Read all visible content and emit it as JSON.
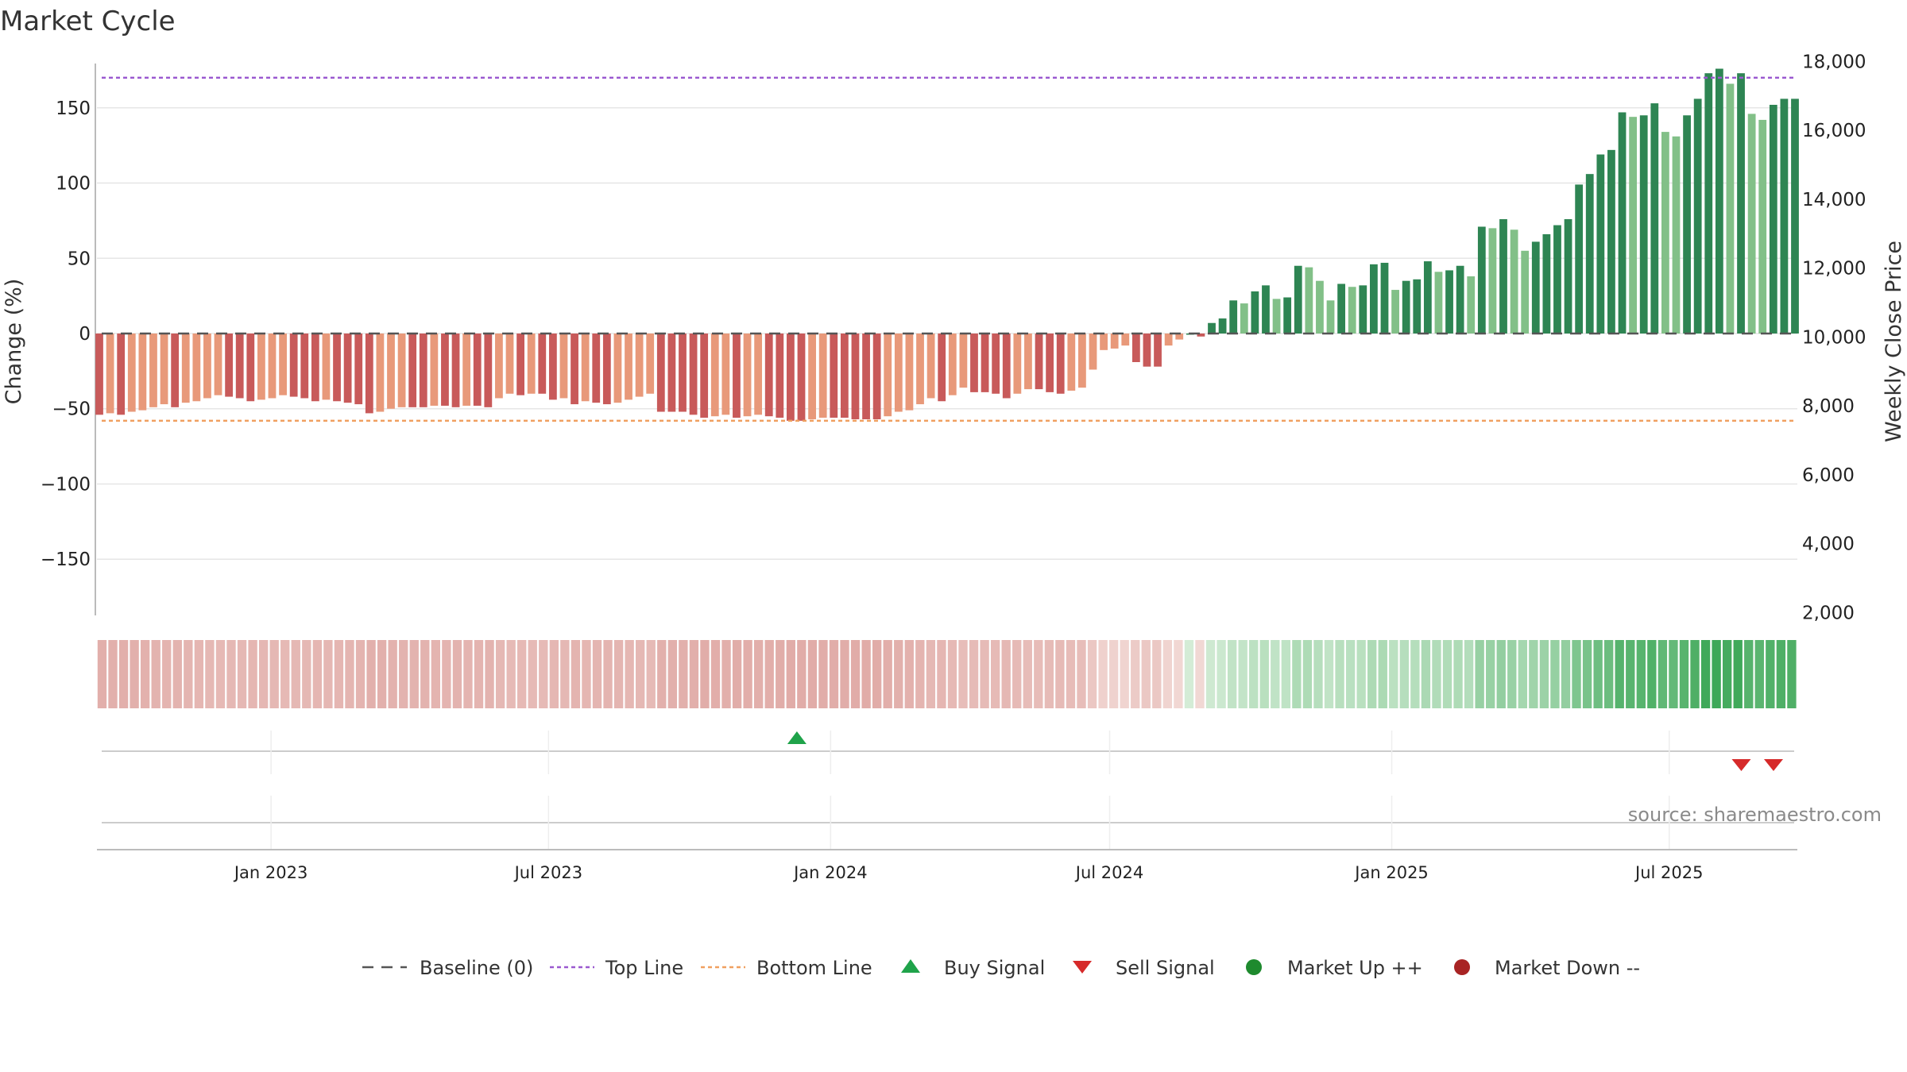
{
  "chart_data": {
    "type": "bar",
    "title": "Market Cycle",
    "ylabel_left": "Change (%)",
    "ylabel_right": "Weekly Close Price",
    "ylim_left": [
      -190,
      190
    ],
    "yticks_left": [
      150,
      100,
      50,
      0,
      -50,
      -100,
      -150
    ],
    "ytick_labels_left": [
      "150",
      "100",
      "50",
      "0",
      "−50",
      "−100",
      "−150"
    ],
    "ylim_right": [
      1800,
      18400
    ],
    "yticks_right": [
      18000,
      16000,
      14000,
      12000,
      10000,
      8000,
      6000,
      4000,
      2000
    ],
    "ytick_labels_right": [
      "18,000",
      "16,000",
      "14,000",
      "12,000",
      "10,000",
      "8,000",
      "6,000",
      "4,000",
      "2,000"
    ],
    "x_start": "2022-09-11",
    "x_end": "2025-09-21",
    "bar_interval_days": 7,
    "xticks": [
      "2023-01-01",
      "2023-07-01",
      "2024-01-01",
      "2024-07-01",
      "2025-01-01",
      "2025-07-01"
    ],
    "xtick_labels": [
      "Jan 2023",
      "Jul 2023",
      "Jan 2024",
      "Jul 2024",
      "Jan 2025",
      "Jul 2025"
    ],
    "top_line": 170,
    "bottom_line": -58,
    "baseline": 0,
    "values": [
      -54,
      -53,
      -54,
      -52,
      -51,
      -49,
      -47,
      -49,
      -46,
      -45,
      -43,
      -41,
      -42,
      -43,
      -45,
      -44,
      -43,
      -41,
      -42,
      -43,
      -45,
      -44,
      -45,
      -46,
      -47,
      -53,
      -52,
      -50,
      -49,
      -49,
      -49,
      -48,
      -48,
      -49,
      -48,
      -48,
      -49,
      -43,
      -40,
      -41,
      -40,
      -40,
      -44,
      -43,
      -47,
      -45,
      -46,
      -47,
      -46,
      -44,
      -42,
      -40,
      -52,
      -52,
      -52,
      -54,
      -56,
      -55,
      -54,
      -56,
      -55,
      -54,
      -55,
      -56,
      -58,
      -58,
      -57,
      -56,
      -56,
      -56,
      -57,
      -57,
      -57,
      -55,
      -52,
      -51,
      -47,
      -43,
      -45,
      -41,
      -36,
      -39,
      -39,
      -40,
      -43,
      -40,
      -37,
      -37,
      -39,
      -40,
      -38,
      -36,
      -24,
      -11,
      -10,
      -8,
      -19,
      -22,
      -22,
      -8,
      -4,
      0,
      -2,
      7,
      10,
      22,
      20,
      28,
      32,
      23,
      24,
      45,
      44,
      35,
      22,
      33,
      31,
      32,
      46,
      47,
      29,
      35,
      36,
      48,
      41,
      42,
      45,
      38,
      71,
      70,
      76,
      69,
      55,
      61,
      66,
      72,
      76,
      99,
      106,
      119,
      122,
      147,
      144,
      145,
      153,
      134,
      131,
      145,
      156,
      173,
      176,
      166,
      173,
      146,
      142,
      152,
      156,
      156
    ],
    "series": [
      {
        "name": "Baseline (0)",
        "style": "dashed",
        "color": "#555555"
      },
      {
        "name": "Top Line",
        "style": "dotted",
        "color": "#9b59d0"
      },
      {
        "name": "Bottom Line",
        "style": "dotted",
        "color": "#f0a060"
      },
      {
        "name": "Buy Signal",
        "marker": "triangle-up",
        "color": "#1fa34a"
      },
      {
        "name": "Sell Signal",
        "marker": "triangle-down",
        "color": "#d62a2a"
      },
      {
        "name": "Market Up ++",
        "marker": "circle",
        "color": "#1e8a2e"
      },
      {
        "name": "Market Down --",
        "marker": "circle",
        "color": "#a82424"
      }
    ],
    "buy_signals": [
      "2023-12-10"
    ],
    "sell_signals": [
      "2025-08-17",
      "2025-09-07"
    ],
    "grid": true,
    "legend_position": "bottom",
    "colors": {
      "down_dark": "#c85a5a",
      "down_light": "#e8997a",
      "up_dark": "#2e8553",
      "up_light": "#82c088",
      "top_line": "#9b59d0",
      "bottom_line": "#f0a060"
    }
  },
  "source": "source: sharemaestro.com"
}
